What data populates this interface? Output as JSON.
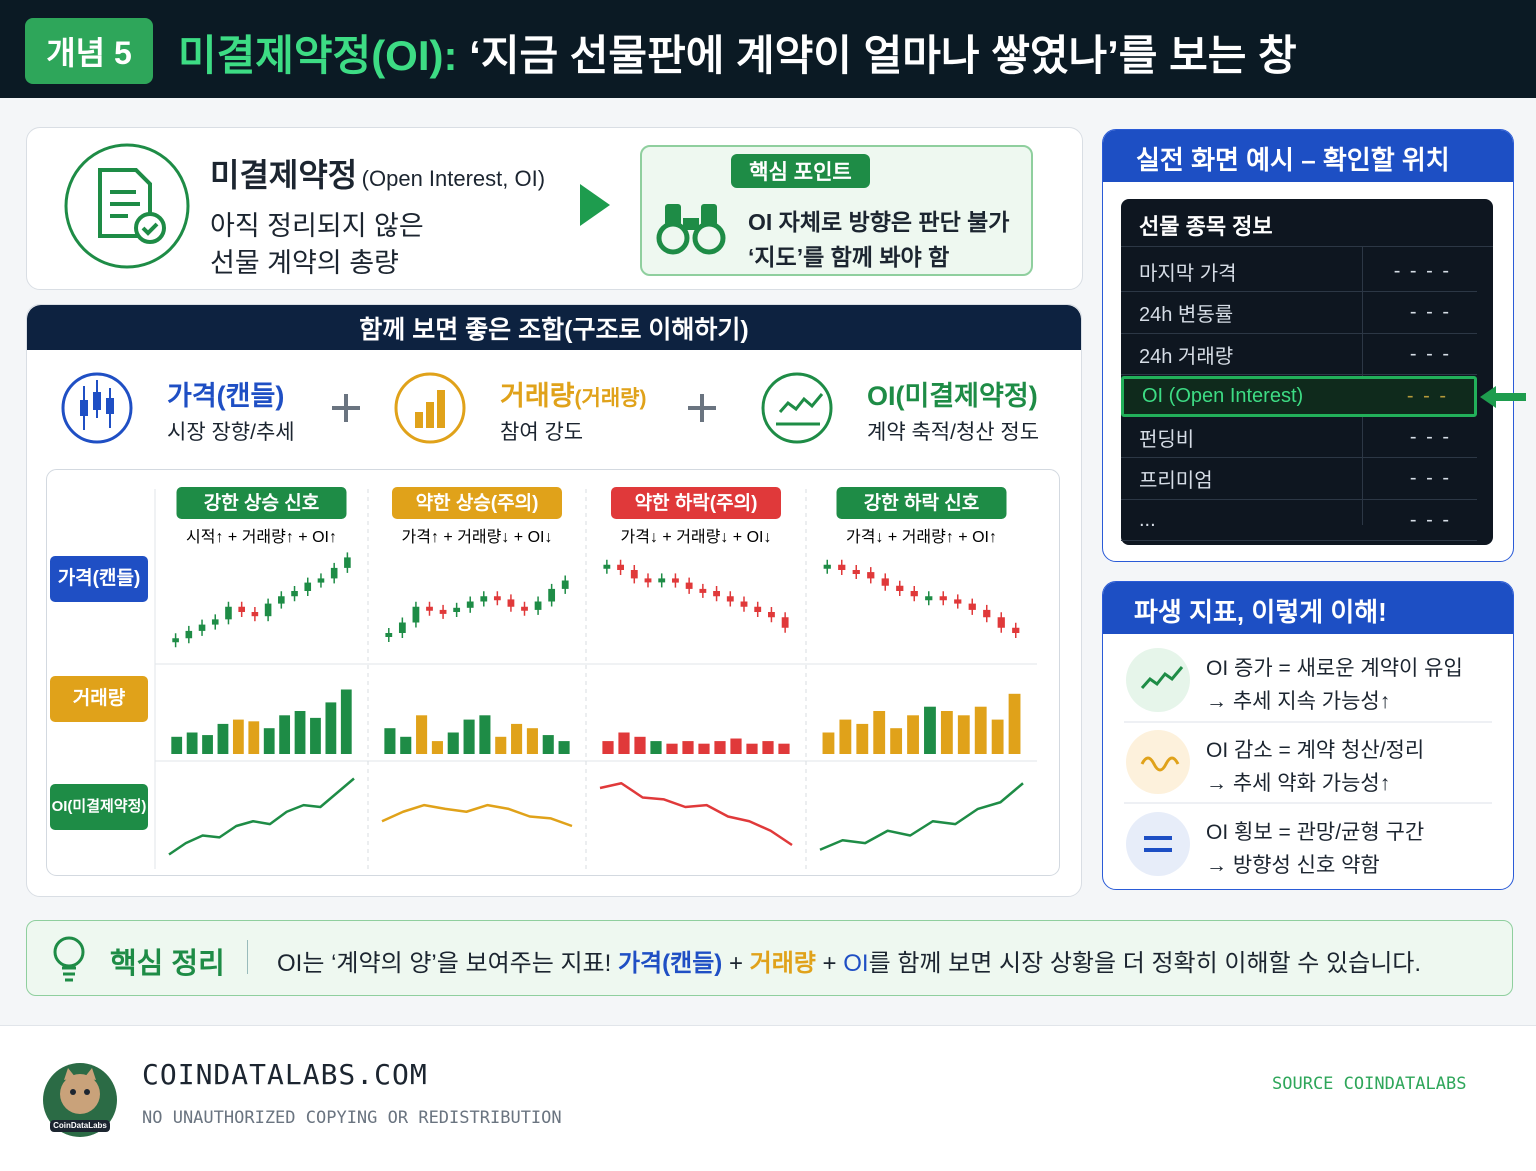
{
  "header": {
    "badge": "개념 5",
    "title_accent": "미결제약정(OI):",
    "title_rest": "‘지금 선물판에 계약이 얼마나 쌓였나’를 보는 창"
  },
  "definition": {
    "term": "미결제약정",
    "term_en": "(Open Interest, OI)",
    "desc_lines": [
      "아직 정리되지 않은",
      "선물 계약의 총량"
    ],
    "key_badge": "핵심 포인트",
    "key_lines": [
      "OI 자체로 방향은 판단 불가",
      "‘지도’를 함께 봐야 함"
    ]
  },
  "combo": {
    "title": "함께 보면 좋은 조합(구조로 이해하기)",
    "items": [
      {
        "title": "가격(캔들)",
        "desc": "시장 장향/추세",
        "color": "#1f4fc4"
      },
      {
        "title": "거래량",
        "title_sub": "(거래량)",
        "desc": "참여 강도",
        "color": "#e0a21a"
      },
      {
        "title": "OI(미결제약정)",
        "desc": "계약 축적/청산 정도",
        "color": "#1e8c46"
      }
    ],
    "row_labels": [
      {
        "text": "가격(캔들)",
        "color": "#1f4fc4"
      },
      {
        "text": "거래량",
        "color": "#e0a21a"
      },
      {
        "text": "OI(미결제약정)",
        "color": "#1e8c46"
      }
    ],
    "ylim": [
      0,
      100
    ],
    "scenarios": [
      {
        "label": "강한 상승 신호",
        "label_color": "#1e8c46",
        "formula": "시적↑ + 거래량↑ + OI↑",
        "volume_color": "#e0a21a",
        "oi_color": "#1e8c46",
        "price": [
          15,
          22,
          28,
          33,
          45,
          40,
          36,
          48,
          55,
          60,
          68,
          72,
          82,
          92
        ],
        "volume": [
          20,
          25,
          22,
          35,
          40,
          38,
          30,
          45,
          50,
          42,
          60,
          75
        ],
        "oi": [
          10,
          22,
          30,
          28,
          40,
          45,
          42,
          55,
          62,
          60,
          75,
          90
        ]
      },
      {
        "label": "약한 상승(주의)",
        "label_color": "#e0a21a",
        "formula": "가격↑ + 거래량↓ + OI↓",
        "volume_color": "#e0a21a",
        "oi_color": "#e0a21a",
        "price": [
          20,
          30,
          45,
          42,
          40,
          44,
          50,
          55,
          52,
          45,
          42,
          50,
          62,
          70
        ],
        "volume": [
          30,
          20,
          45,
          15,
          25,
          40,
          45,
          20,
          35,
          30,
          22,
          15
        ],
        "oi": [
          45,
          55,
          62,
          58,
          55,
          62,
          58,
          50,
          48,
          40
        ]
      },
      {
        "label": "약한 하락(주의)",
        "label_color": "#e0393a",
        "formula": "가격↓ + 거래량↓ + OI↓",
        "volume_color": "#e0393a",
        "oi_color": "#e0393a",
        "price": [
          85,
          80,
          72,
          70,
          72,
          68,
          62,
          60,
          55,
          50,
          45,
          40,
          35,
          25
        ],
        "volume": [
          15,
          25,
          20,
          15,
          12,
          15,
          12,
          15,
          18,
          12,
          15,
          12
        ],
        "oi": [
          80,
          85,
          70,
          68,
          60,
          62,
          50,
          45,
          35,
          20
        ]
      },
      {
        "label": "강한 하락 신호",
        "label_color": "#1e8c46",
        "formula": "가격↓ + 거래량↑ + OI↑",
        "volume_color": "#e0a21a",
        "oi_color": "#1e8c46",
        "price": [
          85,
          80,
          78,
          72,
          65,
          60,
          55,
          55,
          52,
          48,
          42,
          35,
          25,
          20
        ],
        "volume": [
          25,
          40,
          35,
          50,
          30,
          45,
          55,
          50,
          45,
          55,
          40,
          70
        ],
        "oi": [
          15,
          25,
          22,
          35,
          30,
          45,
          42,
          58,
          65,
          85
        ]
      }
    ]
  },
  "screen": {
    "title": "실전 화면 예시 – 확인할 위치",
    "card_title": "선물 종목 정보",
    "rows": [
      {
        "label": "마지막 가격",
        "value": "- - - -"
      },
      {
        "label": "24h 변동률",
        "value": "- - -"
      },
      {
        "label": "24h 거래량",
        "value": "- - -"
      },
      {
        "label": "OI (Open Interest)",
        "value": "- - -",
        "highlight": true
      },
      {
        "label": "펀딩비",
        "value": "- - -"
      },
      {
        "label": "프리미엄",
        "value": "- - -"
      },
      {
        "label": "...",
        "value": "- - -"
      }
    ]
  },
  "derived": {
    "title": "파생 지표, 이렇게 이해!",
    "items": [
      {
        "line1": "OI 증가 = 새로운 계약이 유입",
        "line2": "→ 추세 지속 가능성↑"
      },
      {
        "line1": "OI 감소 = 계약 청산/정리",
        "line2": "→ 추세 약화 가능성↑"
      },
      {
        "line1": "OI 횡보 = 관망/균형 구간",
        "line2": "→ 방향성 신호 약함"
      }
    ]
  },
  "summary": {
    "label": "핵심 정리",
    "parts": [
      "OI는 ‘계약의 양’을 보여주는 지표! ",
      "가격(캔들)",
      " + ",
      "거래량",
      " + ",
      "OI",
      "를 함께 보면 시장 상황을 더 정확히 이해할 수 있습니다."
    ]
  },
  "footer": {
    "site": "COINDATALABS.COM",
    "notice": "NO UNAUTHORIZED COPYING OR REDISTRIBUTION",
    "source": "SOURCE COINDATALABS",
    "logo_text": "CoinDataLabs"
  }
}
